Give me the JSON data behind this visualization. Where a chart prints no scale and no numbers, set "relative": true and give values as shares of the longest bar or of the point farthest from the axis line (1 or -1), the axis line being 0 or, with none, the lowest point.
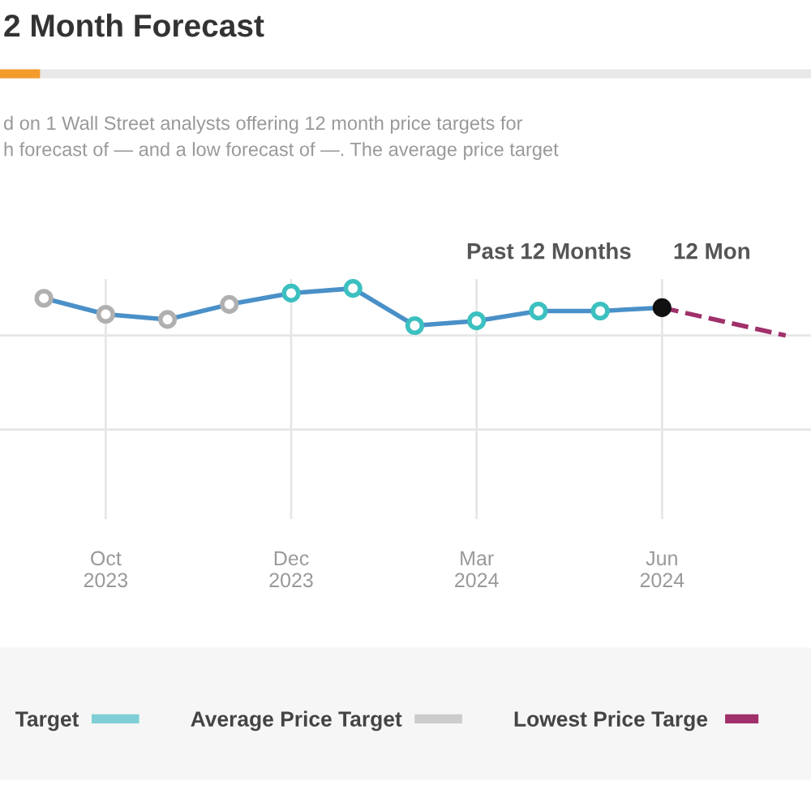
{
  "chart_data": {
    "type": "line",
    "title": "2 Month Forecast",
    "subtitle": "d on 1 Wall Street analysts offering 12 month price targets for\nh forecast of — and a low forecast of —. The average price target",
    "annotations": [
      "Past 12 Months",
      "12 Mon"
    ],
    "categories": [
      null,
      "Oct\n2023",
      null,
      null,
      "Dec\n2023",
      null,
      null,
      "Mar\n2024",
      null,
      null,
      "Jun\n2024",
      null,
      null
    ],
    "relative": true,
    "series": [
      {
        "color": "#4a90c8",
        "colors": [
          "#b0b0b0",
          "#b0b0b0",
          "#b0b0b0",
          "#b0b0b0",
          "#3cc0c0",
          "#3cc0c0",
          "#3cc0c0",
          "#3cc0c0",
          "#3cc0c0",
          "#3cc0c0",
          "#111111",
          null,
          null
        ],
        "values": [
          0.79,
          0.45,
          0.34,
          0.66,
          0.9,
          1.0,
          0.21,
          0.31,
          0.52,
          0.52,
          0.59,
          null,
          null
        ],
        "marker": "circle",
        "line_style": "solid"
      },
      {
        "name": "Target",
        "color": "#7fcfd6",
        "values": [
          null,
          null,
          null,
          null,
          null,
          null,
          null,
          null,
          null,
          null,
          null,
          null,
          null
        ],
        "marker": "none",
        "line_style": "solid"
      },
      {
        "name": "Average Price Target",
        "color": "#cccccc",
        "values": [
          null,
          null,
          null,
          null,
          null,
          null,
          null,
          null,
          null,
          null,
          null,
          null,
          null
        ],
        "marker": "none",
        "line_style": "solid"
      },
      {
        "name": "Lowest Price Targe",
        "color": "#a0306a",
        "values": [
          null,
          null,
          null,
          null,
          null,
          null,
          null,
          null,
          null,
          null,
          0.59,
          null,
          0.0
        ],
        "marker": "none",
        "line_style": "dashed"
      }
    ],
    "grid": true,
    "legend": "bottom"
  }
}
